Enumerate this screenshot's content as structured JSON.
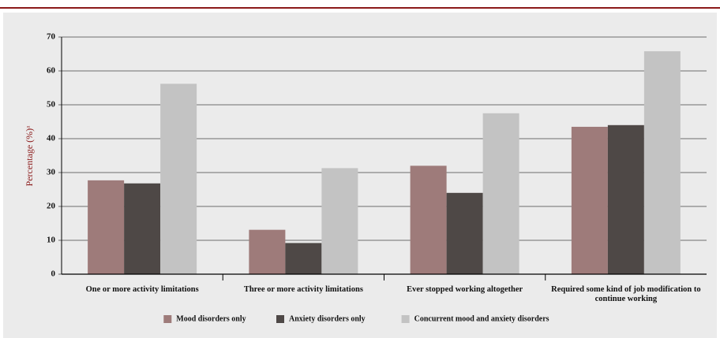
{
  "chart_data": {
    "type": "bar",
    "y_label": "Percentage (%)ᵃ",
    "categories": [
      "One or more activity limitations",
      "Three or more activity limitations",
      "Ever stopped working altogether",
      "Required some kind of job modification to continue working"
    ],
    "series": [
      {
        "name": "Mood disorders only",
        "color": "#9e7b7a",
        "values": [
          27.7,
          13.1,
          32,
          43.5
        ]
      },
      {
        "name": "Anxiety disorders only",
        "color": "#4e4846",
        "values": [
          26.8,
          9.2,
          24,
          44
        ]
      },
      {
        "name": "Concurrent mood and anxiety disorders",
        "color": "#c3c3c3",
        "values": [
          56.2,
          31.3,
          47.5,
          65.8
        ]
      }
    ],
    "ylim": [
      0,
      70
    ],
    "yticks": [
      0,
      10,
      20,
      30,
      40,
      50,
      60,
      70
    ],
    "grid": true,
    "legend": "bottom"
  }
}
